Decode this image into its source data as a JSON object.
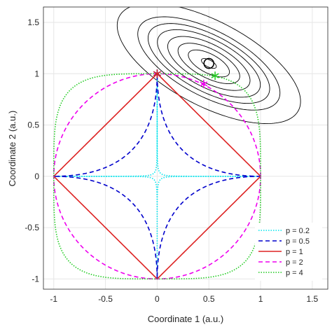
{
  "chart_data": {
    "type": "line",
    "title": "",
    "xlabel": "Coordinate 1 (a.u.)",
    "ylabel": "Coordinate 2 (a.u.)",
    "xlim": [
      -1.1,
      1.65
    ],
    "ylim": [
      -1.1,
      1.65
    ],
    "xticks": [
      -1,
      -0.5,
      0,
      0.5,
      1,
      1.5
    ],
    "yticks": [
      -1,
      -0.5,
      0,
      0.5,
      1,
      1.5
    ],
    "xtick_labels": [
      "-1",
      "-0.5",
      "0",
      "0.5",
      "1",
      "1.5"
    ],
    "ytick_labels": [
      "-1",
      "-0.5",
      "0",
      "0.5",
      "1",
      "1.5"
    ],
    "grid": true,
    "legend_position": "bottom-right",
    "series": [
      {
        "name": "p = 0.2",
        "p": 0.2,
        "color": "#00e5ee",
        "style": "dotted",
        "marker": {
          "x": 0,
          "y": 1
        }
      },
      {
        "name": "p = 0.5",
        "p": 0.5,
        "color": "#0000cc",
        "style": "dashed",
        "marker": {
          "x": 0,
          "y": 1
        }
      },
      {
        "name": "p = 1",
        "p": 1,
        "color": "#dd2222",
        "style": "solid",
        "marker": {
          "x": 0,
          "y": 1
        }
      },
      {
        "name": "p = 2",
        "p": 2,
        "color": "#ee00ee",
        "style": "dashed",
        "marker": {
          "x": 0.45,
          "y": 0.9
        }
      },
      {
        "name": "p = 4",
        "p": 4,
        "color": "#22cc22",
        "style": "dotted",
        "marker": {
          "x": 0.56,
          "y": 0.98
        }
      }
    ],
    "contours": {
      "center": {
        "x": 0.5,
        "y": 1.1
      },
      "angle_deg": -28,
      "semi_axis_ratio": 0.42,
      "major_semi_axes": [
        0.08,
        0.22,
        0.33,
        0.44,
        0.55,
        0.65,
        0.76,
        0.98
      ],
      "color": "#000000"
    },
    "optimum": {
      "x": 0.5,
      "y": 1.1
    }
  }
}
